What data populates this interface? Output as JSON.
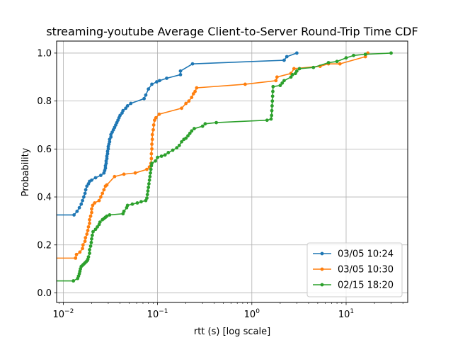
{
  "chart_data": {
    "type": "line",
    "title": "streaming-youtube Average Client-to-Server Round-Trip Time CDF",
    "xlabel": "rtt (s) [log scale]",
    "ylabel": "Probability",
    "xscale": "log",
    "xlim": [
      0.0085,
      45
    ],
    "ylim": [
      -0.04,
      1.05
    ],
    "x_ticks": [
      {
        "value": 0.01,
        "base": "10",
        "exp": "−2"
      },
      {
        "value": 0.1,
        "base": "10",
        "exp": "−1"
      },
      {
        "value": 1,
        "base": "10",
        "exp": "0"
      },
      {
        "value": 10,
        "base": "10",
        "exp": "1"
      }
    ],
    "y_ticks": [
      "0.0",
      "0.2",
      "0.4",
      "0.6",
      "0.8",
      "1.0"
    ],
    "grid": true,
    "legend_position": "lower right",
    "series": [
      {
        "name": "03/05 10:24",
        "color": "#1f77b4",
        "start_y": 0.325,
        "points": [
          [
            0.013,
            0.325
          ],
          [
            0.014,
            0.34
          ],
          [
            0.0148,
            0.355
          ],
          [
            0.0155,
            0.37
          ],
          [
            0.016,
            0.385
          ],
          [
            0.0165,
            0.4
          ],
          [
            0.017,
            0.415
          ],
          [
            0.0173,
            0.43
          ],
          [
            0.0178,
            0.445
          ],
          [
            0.0185,
            0.455
          ],
          [
            0.019,
            0.465
          ],
          [
            0.02,
            0.47
          ],
          [
            0.022,
            0.48
          ],
          [
            0.025,
            0.49
          ],
          [
            0.027,
            0.5
          ],
          [
            0.0275,
            0.51
          ],
          [
            0.028,
            0.52
          ],
          [
            0.028,
            0.53
          ],
          [
            0.0285,
            0.54
          ],
          [
            0.0285,
            0.55
          ],
          [
            0.029,
            0.56
          ],
          [
            0.029,
            0.57
          ],
          [
            0.0295,
            0.58
          ],
          [
            0.0295,
            0.59
          ],
          [
            0.03,
            0.6
          ],
          [
            0.03,
            0.61
          ],
          [
            0.0305,
            0.62
          ],
          [
            0.031,
            0.63
          ],
          [
            0.031,
            0.64
          ],
          [
            0.032,
            0.65
          ],
          [
            0.032,
            0.66
          ],
          [
            0.033,
            0.67
          ],
          [
            0.034,
            0.68
          ],
          [
            0.035,
            0.69
          ],
          [
            0.036,
            0.7
          ],
          [
            0.037,
            0.71
          ],
          [
            0.038,
            0.72
          ],
          [
            0.039,
            0.73
          ],
          [
            0.04,
            0.74
          ],
          [
            0.042,
            0.75
          ],
          [
            0.043,
            0.76
          ],
          [
            0.046,
            0.77
          ],
          [
            0.048,
            0.78
          ],
          [
            0.052,
            0.79
          ],
          [
            0.072,
            0.81
          ],
          [
            0.075,
            0.825
          ],
          [
            0.08,
            0.85
          ],
          [
            0.087,
            0.87
          ],
          [
            0.098,
            0.88
          ],
          [
            0.105,
            0.885
          ],
          [
            0.125,
            0.895
          ],
          [
            0.175,
            0.91
          ],
          [
            0.175,
            0.925
          ],
          [
            0.235,
            0.955
          ],
          [
            2.2,
            0.97
          ],
          [
            2.35,
            0.985
          ],
          [
            3.0,
            1.0
          ]
        ]
      },
      {
        "name": "03/05 10:30",
        "color": "#ff7f0e",
        "start_y": 0.145,
        "points": [
          [
            0.0135,
            0.145
          ],
          [
            0.0138,
            0.16
          ],
          [
            0.015,
            0.17
          ],
          [
            0.016,
            0.185
          ],
          [
            0.0162,
            0.2
          ],
          [
            0.017,
            0.215
          ],
          [
            0.0172,
            0.23
          ],
          [
            0.0178,
            0.245
          ],
          [
            0.0182,
            0.26
          ],
          [
            0.0185,
            0.275
          ],
          [
            0.019,
            0.29
          ],
          [
            0.019,
            0.305
          ],
          [
            0.0195,
            0.32
          ],
          [
            0.02,
            0.335
          ],
          [
            0.02,
            0.35
          ],
          [
            0.0205,
            0.365
          ],
          [
            0.0215,
            0.375
          ],
          [
            0.024,
            0.385
          ],
          [
            0.025,
            0.4
          ],
          [
            0.026,
            0.415
          ],
          [
            0.027,
            0.43
          ],
          [
            0.028,
            0.445
          ],
          [
            0.029,
            0.45
          ],
          [
            0.035,
            0.485
          ],
          [
            0.044,
            0.495
          ],
          [
            0.058,
            0.5
          ],
          [
            0.077,
            0.515
          ],
          [
            0.082,
            0.525
          ],
          [
            0.085,
            0.54
          ],
          [
            0.086,
            0.56
          ],
          [
            0.086,
            0.58
          ],
          [
            0.087,
            0.6
          ],
          [
            0.087,
            0.62
          ],
          [
            0.088,
            0.64
          ],
          [
            0.088,
            0.66
          ],
          [
            0.09,
            0.68
          ],
          [
            0.091,
            0.7
          ],
          [
            0.093,
            0.72
          ],
          [
            0.096,
            0.73
          ],
          [
            0.104,
            0.745
          ],
          [
            0.18,
            0.77
          ],
          [
            0.2,
            0.79
          ],
          [
            0.215,
            0.8
          ],
          [
            0.23,
            0.815
          ],
          [
            0.24,
            0.83
          ],
          [
            0.25,
            0.84
          ],
          [
            0.26,
            0.855
          ],
          [
            0.85,
            0.87
          ],
          [
            1.8,
            0.885
          ],
          [
            1.85,
            0.9
          ],
          [
            2.6,
            0.915
          ],
          [
            2.8,
            0.935
          ],
          [
            5.3,
            0.945
          ],
          [
            6.5,
            0.955
          ],
          [
            8.6,
            0.955
          ],
          [
            16,
            0.985
          ],
          [
            17,
            1.0
          ]
        ]
      },
      {
        "name": "02/15 18:20",
        "color": "#2ca02c",
        "start_y": 0.05,
        "points": [
          [
            0.0128,
            0.05
          ],
          [
            0.0142,
            0.06
          ],
          [
            0.0145,
            0.07
          ],
          [
            0.0148,
            0.08
          ],
          [
            0.015,
            0.09
          ],
          [
            0.0152,
            0.1
          ],
          [
            0.0155,
            0.11
          ],
          [
            0.016,
            0.115
          ],
          [
            0.0165,
            0.12
          ],
          [
            0.017,
            0.125
          ],
          [
            0.0175,
            0.13
          ],
          [
            0.018,
            0.135
          ],
          [
            0.0182,
            0.14
          ],
          [
            0.0185,
            0.15
          ],
          [
            0.019,
            0.165
          ],
          [
            0.019,
            0.18
          ],
          [
            0.0195,
            0.195
          ],
          [
            0.0198,
            0.21
          ],
          [
            0.02,
            0.225
          ],
          [
            0.0203,
            0.24
          ],
          [
            0.0207,
            0.255
          ],
          [
            0.022,
            0.265
          ],
          [
            0.023,
            0.275
          ],
          [
            0.024,
            0.285
          ],
          [
            0.0245,
            0.295
          ],
          [
            0.026,
            0.305
          ],
          [
            0.027,
            0.31
          ],
          [
            0.028,
            0.315
          ],
          [
            0.029,
            0.32
          ],
          [
            0.031,
            0.325
          ],
          [
            0.043,
            0.33
          ],
          [
            0.044,
            0.34
          ],
          [
            0.047,
            0.355
          ],
          [
            0.048,
            0.365
          ],
          [
            0.054,
            0.37
          ],
          [
            0.061,
            0.375
          ],
          [
            0.067,
            0.38
          ],
          [
            0.075,
            0.385
          ],
          [
            0.077,
            0.395
          ],
          [
            0.078,
            0.41
          ],
          [
            0.079,
            0.425
          ],
          [
            0.08,
            0.44
          ],
          [
            0.081,
            0.455
          ],
          [
            0.082,
            0.47
          ],
          [
            0.083,
            0.485
          ],
          [
            0.084,
            0.5
          ],
          [
            0.085,
            0.515
          ],
          [
            0.086,
            0.53
          ],
          [
            0.087,
            0.54
          ],
          [
            0.095,
            0.55
          ],
          [
            0.1,
            0.565
          ],
          [
            0.11,
            0.57
          ],
          [
            0.12,
            0.575
          ],
          [
            0.13,
            0.585
          ],
          [
            0.145,
            0.595
          ],
          [
            0.16,
            0.605
          ],
          [
            0.17,
            0.615
          ],
          [
            0.18,
            0.63
          ],
          [
            0.19,
            0.64
          ],
          [
            0.2,
            0.645
          ],
          [
            0.21,
            0.655
          ],
          [
            0.22,
            0.665
          ],
          [
            0.23,
            0.675
          ],
          [
            0.245,
            0.685
          ],
          [
            0.3,
            0.695
          ],
          [
            0.32,
            0.705
          ],
          [
            0.42,
            0.71
          ],
          [
            1.45,
            0.72
          ],
          [
            1.6,
            0.725
          ],
          [
            1.62,
            0.74
          ],
          [
            1.63,
            0.76
          ],
          [
            1.64,
            0.78
          ],
          [
            1.65,
            0.8
          ],
          [
            1.66,
            0.82
          ],
          [
            1.67,
            0.84
          ],
          [
            1.68,
            0.86
          ],
          [
            2.0,
            0.865
          ],
          [
            2.1,
            0.875
          ],
          [
            2.2,
            0.885
          ],
          [
            2.6,
            0.9
          ],
          [
            2.7,
            0.91
          ],
          [
            2.9,
            0.915
          ],
          [
            3.0,
            0.925
          ],
          [
            3.2,
            0.935
          ],
          [
            4.5,
            0.94
          ],
          [
            6.5,
            0.96
          ],
          [
            8.0,
            0.965
          ],
          [
            10,
            0.98
          ],
          [
            12,
            0.99
          ],
          [
            16,
            0.995
          ],
          [
            30,
            1.0
          ]
        ]
      }
    ]
  }
}
